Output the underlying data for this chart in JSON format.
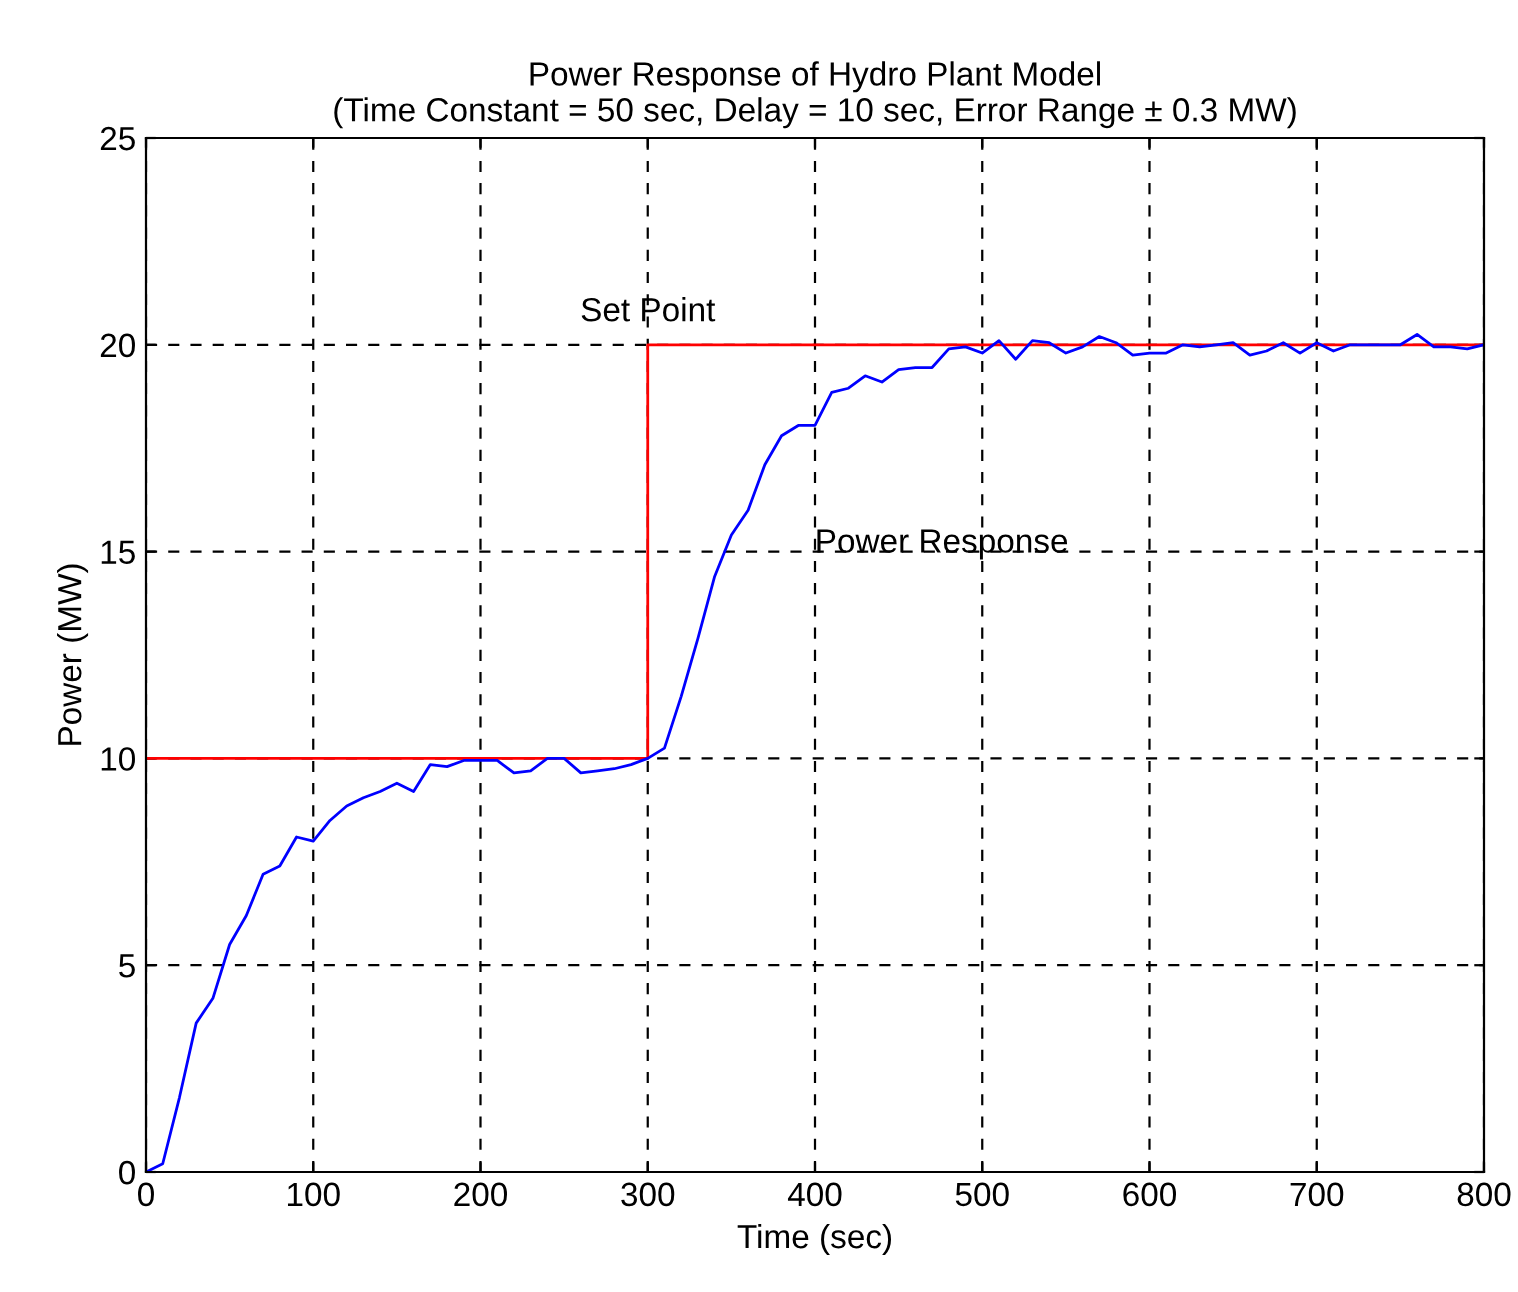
{
  "chart_data": {
    "type": "line",
    "title": "Power Response of Hydro Plant Model\n(Time Constant = 50 sec, Delay = 10 sec, Error Range ± 0.3 MW)",
    "xlabel": "Time (sec)",
    "ylabel": "Power (MW)",
    "series": [
      {
        "name": "Set Point",
        "type": "step",
        "color": "#ff0000",
        "x": [
          0,
          300,
          800
        ],
        "values": [
          10,
          20,
          20
        ]
      },
      {
        "name": "Power Response",
        "color": "#0000ff",
        "x": [
          0,
          10,
          20,
          30,
          40,
          50,
          60,
          70,
          80,
          90,
          100,
          110,
          120,
          130,
          140,
          150,
          160,
          170,
          180,
          190,
          200,
          210,
          220,
          230,
          240,
          250,
          260,
          270,
          280,
          290,
          300,
          310,
          320,
          330,
          340,
          350,
          360,
          370,
          380,
          390,
          400,
          410,
          420,
          430,
          440,
          450,
          460,
          470,
          480,
          490,
          500,
          510,
          520,
          530,
          540,
          550,
          560,
          570,
          580,
          590,
          600,
          610,
          620,
          630,
          640,
          650,
          660,
          670,
          680,
          690,
          700,
          710,
          720,
          730,
          740,
          750,
          760,
          770,
          780,
          790,
          800
        ],
        "values": [
          0,
          0.2,
          1.8,
          3.6,
          4.2,
          5.5,
          6.2,
          7.2,
          7.4,
          8.1,
          8.0,
          8.5,
          8.85,
          9.05,
          9.2,
          9.4,
          9.2,
          9.85,
          9.8,
          9.95,
          9.95,
          9.95,
          9.65,
          9.7,
          10.0,
          10.0,
          9.65,
          9.7,
          9.75,
          9.85,
          10.0,
          10.25,
          11.5,
          12.9,
          14.4,
          15.4,
          16.0,
          17.1,
          17.8,
          18.05,
          18.05,
          18.85,
          18.95,
          19.25,
          19.1,
          19.4,
          19.45,
          19.45,
          19.9,
          19.95,
          19.8,
          20.1,
          19.65,
          20.1,
          20.05,
          19.8,
          19.95,
          20.2,
          20.05,
          19.75,
          19.8,
          19.8,
          20.0,
          19.95,
          20.0,
          20.05,
          19.75,
          19.85,
          20.05,
          19.8,
          20.05,
          19.85,
          20.0,
          20.0,
          20.0,
          20.0,
          20.25,
          19.95,
          19.95,
          19.9,
          20.0
        ]
      }
    ],
    "xlim": [
      0,
      800
    ],
    "xticks": [
      0,
      100,
      200,
      300,
      400,
      500,
      600,
      700,
      800
    ],
    "ylim": [
      0,
      25
    ],
    "yticks": [
      0,
      5,
      10,
      15,
      20,
      25
    ],
    "grid": true,
    "line_style": "solid",
    "marker": "none",
    "legend": false
  }
}
